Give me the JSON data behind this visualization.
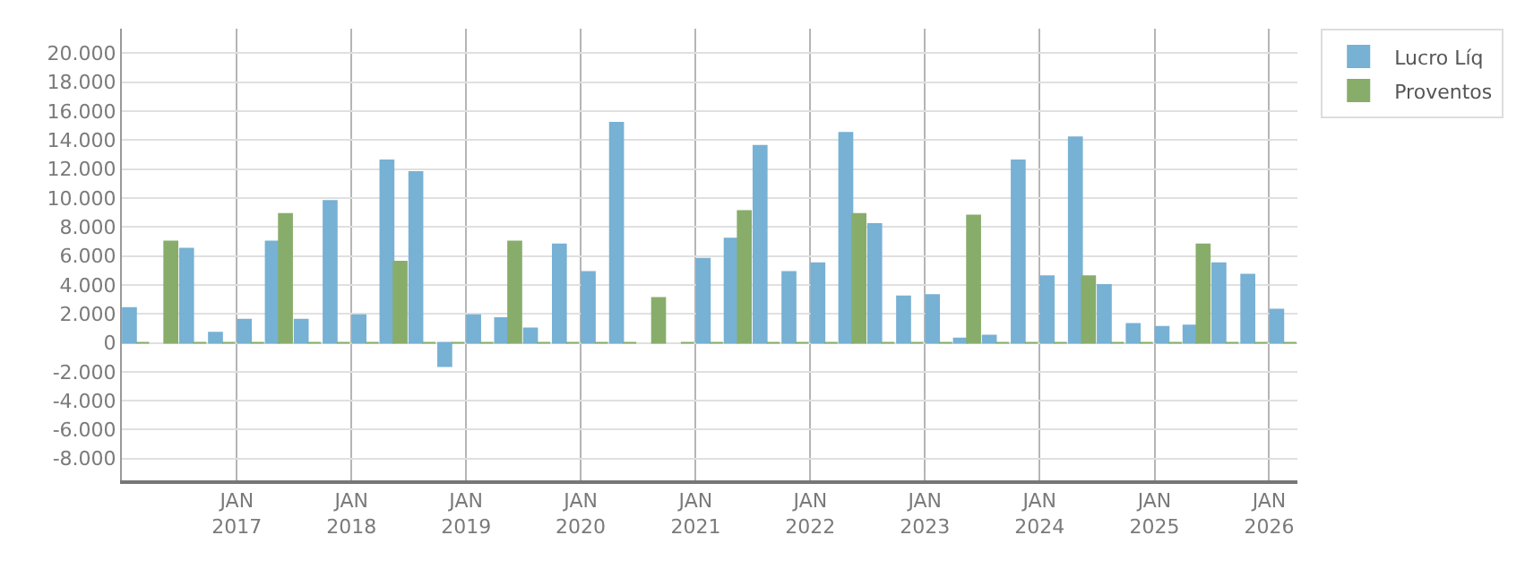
{
  "chart_data": {
    "type": "bar",
    "x": [
      "2016-02-15",
      "2016-05-15",
      "2016-08-15",
      "2016-11-15",
      "2017-02-15",
      "2017-05-15",
      "2017-08-15",
      "2017-11-15",
      "2018-02-15",
      "2018-05-15",
      "2018-08-15",
      "2018-11-15",
      "2019-02-15",
      "2019-05-15",
      "2019-08-15",
      "2019-11-15",
      "2020-02-15",
      "2020-05-15",
      "2020-08-15",
      "2020-11-15",
      "2021-02-15",
      "2021-05-15",
      "2021-08-15",
      "2021-11-15",
      "2022-02-15",
      "2022-05-15",
      "2022-08-15",
      "2022-11-15",
      "2023-02-15",
      "2023-05-15",
      "2023-08-15",
      "2023-11-15",
      "2024-02-15",
      "2024-05-15",
      "2024-08-15",
      "2024-11-15",
      "2025-02-15",
      "2025-05-15",
      "2025-08-15",
      "2025-11-15",
      "2026-02-15"
    ],
    "series": [
      {
        "name": "Lucro Líq",
        "color": "#77b1d4",
        "values": [
          2400,
          null,
          6500,
          700,
          1600,
          7000,
          1600,
          9800,
          1900,
          12600,
          11800,
          -1600,
          1900,
          1700,
          1000,
          6800,
          4900,
          15200,
          null,
          null,
          5800,
          7200,
          13600,
          4900,
          5500,
          14500,
          8200,
          3200,
          3300,
          300,
          500,
          12600,
          4600,
          14200,
          4000,
          1300,
          1100,
          1200,
          5500,
          4700,
          2300
        ]
      },
      {
        "name": "Proventos",
        "color": "#88ad6b",
        "values": [
          0,
          7000,
          0,
          0,
          0,
          8900,
          0,
          0,
          0,
          5600,
          0,
          0,
          0,
          7000,
          0,
          0,
          0,
          0,
          3100,
          0,
          0,
          9100,
          0,
          0,
          0,
          8900,
          0,
          0,
          0,
          8800,
          0,
          0,
          0,
          4600,
          0,
          0,
          0,
          6800,
          0,
          0,
          0
        ]
      }
    ],
    "ylim": [
      -9500,
      21700
    ],
    "yticks": [
      {
        "value": -8000,
        "label": "-8.000"
      },
      {
        "value": -6000,
        "label": "-6.000"
      },
      {
        "value": -4000,
        "label": "-4.000"
      },
      {
        "value": -2000,
        "label": "-2.000"
      },
      0,
      {
        "value": 2000,
        "label": "2.000"
      },
      {
        "value": 4000,
        "label": "4.000"
      },
      {
        "value": 6000,
        "label": "6.000"
      },
      {
        "value": 8000,
        "label": "8.000"
      },
      {
        "value": 10000,
        "label": "10.000"
      },
      {
        "value": 12000,
        "label": "12.000"
      },
      {
        "value": 14000,
        "label": "14.000"
      },
      {
        "value": 16000,
        "label": "16.000"
      },
      {
        "value": 18000,
        "label": "18.000"
      },
      {
        "value": 20000,
        "label": "20.000"
      }
    ],
    "xlim": [
      "2016-01-01",
      "2026-04-01"
    ],
    "xticks": [
      {
        "value": "2017-01-01",
        "label": "JAN\n2017"
      },
      {
        "value": "2018-01-01",
        "label": "JAN\n2018"
      },
      {
        "value": "2019-01-01",
        "label": "JAN\n2019"
      },
      {
        "value": "2020-01-01",
        "label": "JAN\n2020"
      },
      {
        "value": "2021-01-01",
        "label": "JAN\n2021"
      },
      {
        "value": "2022-01-01",
        "label": "JAN\n2022"
      },
      {
        "value": "2023-01-01",
        "label": "JAN\n2023"
      },
      {
        "value": "2024-01-01",
        "label": "JAN\n2024"
      },
      {
        "value": "2025-01-01",
        "label": "JAN\n2025"
      },
      {
        "value": "2026-01-01",
        "label": "JAN\n2026"
      }
    ],
    "grid": true,
    "legend": "top right"
  }
}
